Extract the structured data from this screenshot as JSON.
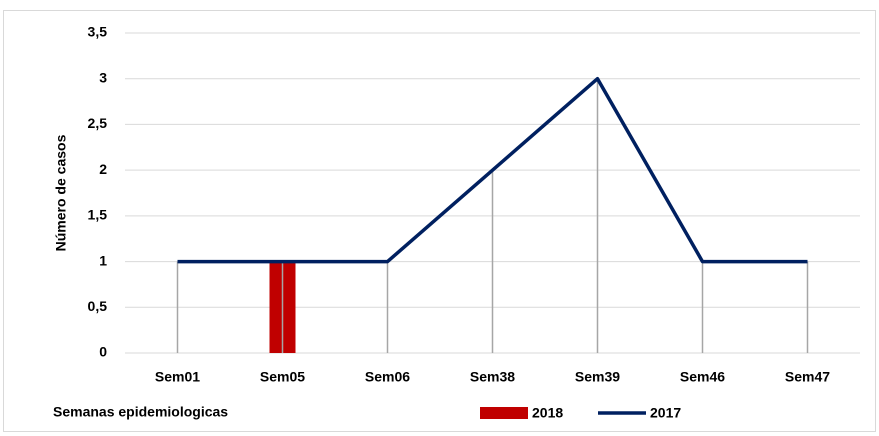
{
  "chart_data": {
    "type": "bar-line",
    "y_label": "Número de casos",
    "x_label": "Semanas epidemiologicas",
    "categories": [
      "Sem01",
      "Sem05",
      "Sem06",
      "Sem38",
      "Sem39",
      "Sem46",
      "Sem47"
    ],
    "series": [
      {
        "name": "2018",
        "type": "bar",
        "color": "#c00000",
        "values": [
          null,
          1,
          null,
          null,
          null,
          null,
          null
        ]
      },
      {
        "name": "2017",
        "type": "line",
        "color": "#002060",
        "values": [
          1,
          1,
          1,
          2,
          3,
          1,
          1
        ]
      }
    ],
    "ylim": [
      0,
      3.5
    ],
    "yticks": [
      0,
      {
        "value": 0.5,
        "label": "0,5"
      },
      1,
      {
        "value": 1.5,
        "label": "1,5"
      },
      2,
      {
        "value": 2.5,
        "label": "2,5"
      },
      3,
      {
        "value": 3.5,
        "label": "3,5"
      }
    ],
    "grid": true
  }
}
